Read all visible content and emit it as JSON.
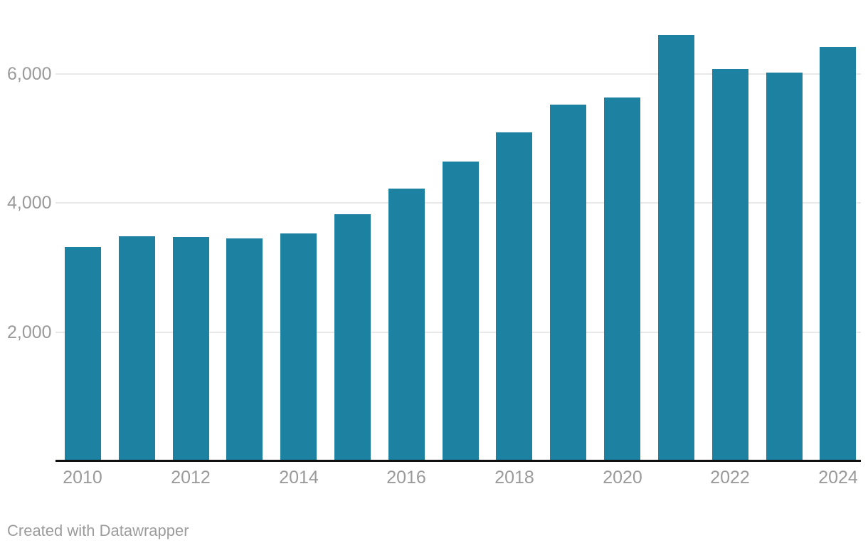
{
  "chart_data": {
    "type": "bar",
    "categories": [
      "2010",
      "2011",
      "2012",
      "2013",
      "2014",
      "2015",
      "2016",
      "2017",
      "2018",
      "2019",
      "2020",
      "2021",
      "2022",
      "2023",
      "2024"
    ],
    "values": [
      3320,
      3480,
      3470,
      3450,
      3530,
      3820,
      4220,
      4640,
      5090,
      5520,
      5630,
      6600,
      6070,
      6020,
      6410
    ],
    "title": "",
    "xlabel": "",
    "ylabel": "",
    "ylim": [
      0,
      7140
    ],
    "y_ticks": [
      2000,
      4000,
      6000
    ],
    "y_tick_labels": [
      "2,000",
      "4,000",
      "6,000"
    ],
    "x_tick_labels": [
      "2010",
      "2012",
      "2014",
      "2016",
      "2018",
      "2020",
      "2022",
      "2024"
    ],
    "x_tick_every": 2,
    "grid": true,
    "legend": false,
    "bar_color": "#1d81a2"
  },
  "colors": {
    "bar": "#1d81a2",
    "gridline": "#e8e8e8",
    "axis_line": "#111111",
    "tick_label": "#9a9a9a",
    "attribution_text": "#9c9c9c",
    "background": "#ffffff"
  },
  "footer": {
    "attribution": "Created with Datawrapper"
  }
}
